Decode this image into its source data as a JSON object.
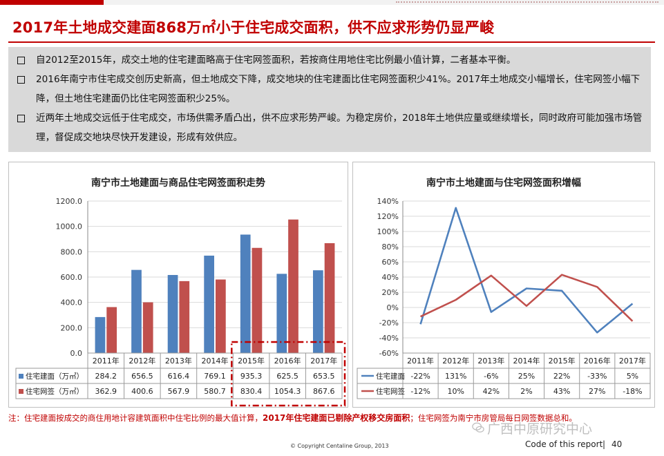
{
  "header": {
    "title": "2017年土地成交建面868万㎡小于住宅成交面积，供不应求形势仍显严峻"
  },
  "summary": {
    "bullets": [
      "自2012至2015年，成交土地的住宅建面略高于住宅网签面积，若按商住用地住宅比例最小值计算，二者基本平衡。",
      "2016年南宁市住宅成交创历史新高，但土地成交下降，成交地块的住宅建面比住宅网签面积少41%。2017年土地成交小幅增长，住宅网签小幅下降，但土地住宅建面仍比住宅网签面积少25%。",
      "近两年土地成交远低于住宅成交，市场供需矛盾凸出，供不应求形势严峻。为稳定房价，2018年土地供应量或继续增长，同时政府可能加强市场管理，督促成交地块尽快开发建设，形成有效供应。"
    ]
  },
  "chart_data": [
    {
      "type": "bar",
      "title": "南宁市土地建面与商品住宅网签面积走势",
      "categories": [
        "2011年",
        "2012年",
        "2013年",
        "2014年",
        "2015年",
        "2016年",
        "2017年"
      ],
      "ylim": [
        0,
        1200
      ],
      "yticks": [
        "0.0",
        "200.0",
        "400.0",
        "600.0",
        "800.0",
        "1000.0",
        "1200.0"
      ],
      "grid": true,
      "legend": "table-bottom",
      "series": [
        {
          "name": "住宅建面（万㎡）",
          "color": "#4f81bd",
          "values": [
            284.2,
            656.5,
            616.4,
            769.1,
            935.3,
            625.5,
            653.5
          ],
          "labels": [
            "284.2",
            "656.5",
            "616.4",
            "769.1",
            "935.3",
            "625.5",
            "653.5"
          ]
        },
        {
          "name": "住宅网签（万㎡）",
          "color": "#c0504d",
          "values": [
            362.9,
            400.6,
            567.9,
            580.7,
            830.4,
            1054.3,
            867.6
          ],
          "labels": [
            "362.9",
            "400.6",
            "567.9",
            "580.7",
            "830.4",
            "1054.3",
            "867.6"
          ]
        }
      ],
      "highlight_categories": [
        "2015年",
        "2016年",
        "2017年"
      ]
    },
    {
      "type": "line",
      "title": "南宁市土地建面与住宅网签面积增幅",
      "categories": [
        "2011年",
        "2012年",
        "2013年",
        "2014年",
        "2015年",
        "2016年",
        "2017年"
      ],
      "ylim": [
        -60,
        140
      ],
      "yticks": [
        "-60%",
        "-40%",
        "-20%",
        "0%",
        "20%",
        "40%",
        "60%",
        "80%",
        "100%",
        "120%",
        "140%"
      ],
      "grid": true,
      "legend": "table-bottom",
      "series": [
        {
          "name": "住宅建面",
          "color": "#4f81bd",
          "values": [
            -22,
            131,
            -6,
            25,
            22,
            -33,
            5
          ],
          "labels": [
            "-22%",
            "131%",
            "-6%",
            "25%",
            "22%",
            "-33%",
            "5%"
          ]
        },
        {
          "name": "住宅网签",
          "color": "#c0504d",
          "values": [
            -12,
            10,
            42,
            2,
            43,
            27,
            -18
          ],
          "labels": [
            "-12%",
            "10%",
            "42%",
            "2%",
            "43%",
            "27%",
            "-18%"
          ]
        }
      ]
    }
  ],
  "footnote": {
    "prefix": "注：住宅建面按成交的商住用地计容建筑面积中住宅比例的最大值计算，",
    "bold": "2017年住宅建面已剔除产权移交房面积",
    "suffix": "；住宅网签为南宁市房管局每日网签数据总和。"
  },
  "footer": {
    "copyright": "© Copyright  Centaline Group, 2013",
    "watermark": "广西中原研究中心",
    "code": "Code of this report",
    "separator": "|",
    "page": "40"
  },
  "colors": {
    "brand": "#c00000",
    "summary_bg": "#d9d9d9",
    "grid": "#d9d9d9"
  }
}
